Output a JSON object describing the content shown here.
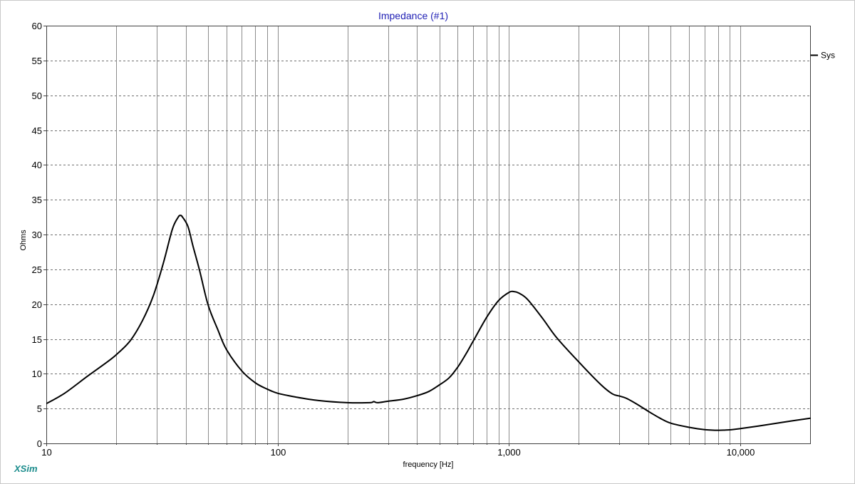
{
  "brand": "XSim",
  "colors": {
    "title": "#1f1fb4",
    "curve": "#000000",
    "brand": "#1b8c8c"
  },
  "chart_data": {
    "type": "line",
    "title": "Impedance (#1)",
    "xlabel": "frequency [Hz]",
    "ylabel": "Ohms",
    "xscale": "log",
    "xlim": [
      10,
      20000
    ],
    "ylim": [
      0,
      60
    ],
    "yticks": [
      0,
      5,
      10,
      15,
      20,
      25,
      30,
      35,
      40,
      45,
      50,
      55,
      60
    ],
    "xticks": [
      10,
      100,
      1000,
      10000
    ],
    "xtick_labels": [
      "10",
      "100",
      "1,000",
      "10,000"
    ],
    "grid": true,
    "legend": "right",
    "series": [
      {
        "name": "Sys",
        "color": "#000000",
        "x": [
          10,
          12,
          15,
          18,
          20,
          23,
          26,
          29,
          32,
          35,
          37,
          38,
          39,
          41,
          43,
          46,
          50,
          55,
          60,
          70,
          80,
          90,
          100,
          120,
          150,
          200,
          250,
          260,
          270,
          300,
          350,
          400,
          450,
          500,
          550,
          600,
          650,
          700,
          800,
          900,
          1000,
          1050,
          1100,
          1200,
          1400,
          1600,
          2000,
          2500,
          2800,
          3000,
          3200,
          3500,
          4000,
          4500,
          5000,
          6000,
          7000,
          8000,
          9000,
          10000,
          12000,
          15000,
          20000
        ],
        "y": [
          5.7,
          7.2,
          9.6,
          11.5,
          12.7,
          14.7,
          17.6,
          21.2,
          25.8,
          30.7,
          32.4,
          32.75,
          32.4,
          31.1,
          28.4,
          24.8,
          19.9,
          16.4,
          13.5,
          10.4,
          8.7,
          7.8,
          7.2,
          6.65,
          6.15,
          5.85,
          5.85,
          6.0,
          5.85,
          6.05,
          6.35,
          6.85,
          7.45,
          8.4,
          9.4,
          10.95,
          12.8,
          14.7,
          18.1,
          20.5,
          21.7,
          21.8,
          21.6,
          20.7,
          17.9,
          15.25,
          11.7,
          8.4,
          7.1,
          6.8,
          6.5,
          5.8,
          4.6,
          3.6,
          2.9,
          2.3,
          1.98,
          1.88,
          1.95,
          2.12,
          2.5,
          3.0,
          3.6
        ]
      }
    ]
  }
}
